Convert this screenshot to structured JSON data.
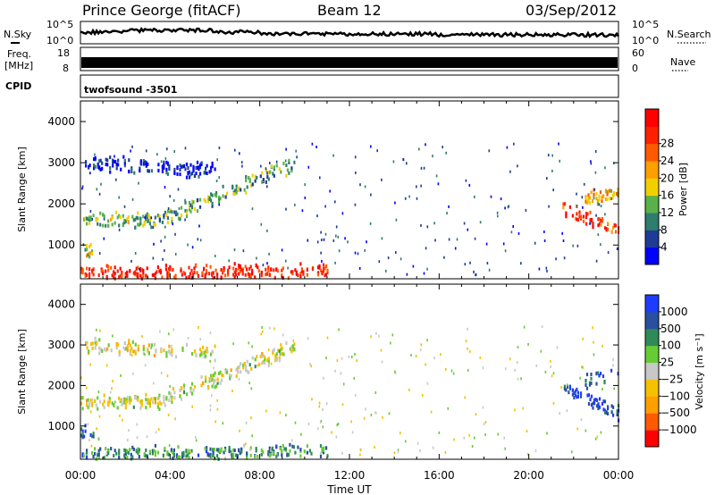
{
  "header": {
    "station": "Prince George (fitACF)",
    "beam": "Beam 12",
    "date": "03/Sep/2012"
  },
  "strips": {
    "nsky_label": "N.Sky",
    "nsearch_label": "N.Search",
    "noise_ticks": [
      "10^5",
      "10^0"
    ],
    "freq_label_1": "Freq.",
    "freq_label_2": "[MHz]",
    "freq_ticks": [
      "18",
      "8"
    ],
    "nave_label": "Nave",
    "nave_ticks": [
      "60",
      "0"
    ],
    "cpid_label": "CPID",
    "cpid_value": "twofsound  -3501"
  },
  "time_axis": {
    "label": "Time UT",
    "ticks": [
      "00:00",
      "04:00",
      "08:00",
      "12:00",
      "16:00",
      "20:00",
      "00:00"
    ]
  },
  "colors": {
    "power": [
      "#0000ff",
      "#1e3c96",
      "#2e7d6e",
      "#5ab14a",
      "#f2d000",
      "#ff9f00",
      "#ff5a00",
      "#ff2000",
      "#ff0000"
    ],
    "velocity": [
      "#ff0000",
      "#ff5a00",
      "#ff9f00",
      "#f5c000",
      "#c8c8c8",
      "#66cc33",
      "#2e8b57",
      "#2a4f9e",
      "#1e3cff"
    ]
  },
  "chart_data": [
    {
      "type": "heatmap",
      "parameter": "Power",
      "ylabel": "Slant Range [km]",
      "xlabel": "",
      "xlim_hours": [
        0,
        24
      ],
      "ylim_km": [
        180,
        4500
      ],
      "y_ticks": [
        1000,
        2000,
        3000,
        4000
      ],
      "colorbar": {
        "label": "Power [dB]",
        "ticks": [
          "4",
          "8",
          "12",
          "16",
          "20",
          "24",
          "28"
        ]
      },
      "echo_bands": [
        {
          "from_h": 0.0,
          "to_h": 11.0,
          "km_start": 300,
          "km_end": 380,
          "level": 0.85
        },
        {
          "from_h": 0.0,
          "to_h": 3.5,
          "km_start": 1600,
          "km_end": 1600,
          "level": 0.4
        },
        {
          "from_h": 3.5,
          "to_h": 9.5,
          "km_start": 1600,
          "km_end": 2950,
          "level": 0.35
        },
        {
          "from_h": 0.2,
          "to_h": 6.0,
          "km_start": 3000,
          "km_end": 2800,
          "level": 0.1
        },
        {
          "from_h": 0.0,
          "to_h": 0.6,
          "km_start": 850,
          "km_end": 850,
          "level": 0.45
        },
        {
          "from_h": 21.5,
          "to_h": 24.0,
          "km_start": 1900,
          "km_end": 1300,
          "level": 0.8
        },
        {
          "from_h": 22.5,
          "to_h": 24.0,
          "km_start": 2100,
          "km_end": 2300,
          "level": 0.55
        }
      ]
    },
    {
      "type": "heatmap",
      "parameter": "Velocity",
      "ylabel": "Slant Range [km]",
      "xlabel": "Time UT",
      "xlim_hours": [
        0,
        24
      ],
      "ylim_km": [
        180,
        4500
      ],
      "y_ticks": [
        1000,
        2000,
        3000,
        4000
      ],
      "colorbar": {
        "label": "Velocity [m s⁻¹]",
        "ticks": [
          "1000",
          "500",
          "100",
          "25",
          "−25",
          "−100",
          "−500",
          "−1000"
        ]
      },
      "echo_bands": [
        {
          "from_h": 0.0,
          "to_h": 11.0,
          "km_start": 300,
          "km_end": 380,
          "level": 0.72
        },
        {
          "from_h": 0.0,
          "to_h": 3.5,
          "km_start": 1600,
          "km_end": 1600,
          "level": 0.5
        },
        {
          "from_h": 3.5,
          "to_h": 9.5,
          "km_start": 1600,
          "km_end": 2950,
          "level": 0.5
        },
        {
          "from_h": 0.2,
          "to_h": 6.0,
          "km_start": 3000,
          "km_end": 2800,
          "level": 0.45
        },
        {
          "from_h": 0.0,
          "to_h": 0.6,
          "km_start": 850,
          "km_end": 850,
          "level": 0.9
        },
        {
          "from_h": 21.5,
          "to_h": 24.0,
          "km_start": 1900,
          "km_end": 1300,
          "level": 0.92
        },
        {
          "from_h": 22.5,
          "to_h": 24.0,
          "km_start": 2100,
          "km_end": 2300,
          "level": 0.85
        }
      ]
    }
  ]
}
